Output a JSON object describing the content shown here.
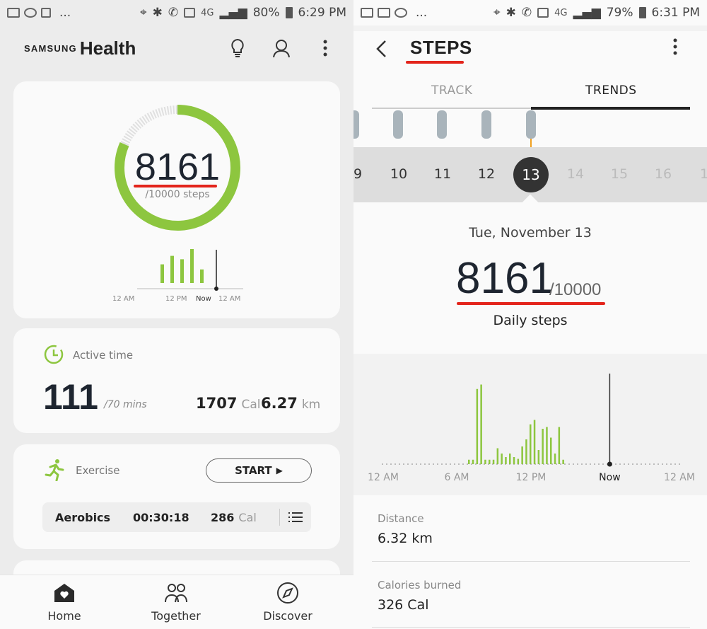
{
  "left_status": {
    "battery": "80%",
    "time": "6:29 PM",
    "network": "4G",
    "more": "..."
  },
  "right_status": {
    "battery": "79%",
    "time": "6:31 PM",
    "network": "4G",
    "more": "..."
  },
  "home": {
    "brand_small": "SAMSUNG",
    "brand_large": "Health",
    "steps": {
      "count": "8161",
      "goal_text": "/10000 steps",
      "progress_fraction": 0.816,
      "mini_chart_bars": [
        0.55,
        0.8,
        0.7,
        1.0,
        0.4
      ],
      "mini_labels": [
        "12 AM",
        "12 PM",
        "Now",
        "12 AM"
      ]
    },
    "active_time": {
      "label": "Active time",
      "value": "111",
      "unit": "/70 mins",
      "calories": "1707",
      "calories_unit": "Cal",
      "distance": "6.27",
      "distance_unit": "km"
    },
    "exercise": {
      "label": "Exercise",
      "start_label": "START",
      "recent": {
        "name": "Aerobics",
        "duration": "00:30:18",
        "calories": "286",
        "calories_unit": "Cal"
      }
    },
    "nav": [
      {
        "label": "Home",
        "icon": "home-heart-icon"
      },
      {
        "label": "Together",
        "icon": "people-icon"
      },
      {
        "label": "Discover",
        "icon": "compass-icon"
      }
    ]
  },
  "steps_detail": {
    "title": "STEPS",
    "tabs": [
      "TRACK",
      "TRENDS"
    ],
    "active_tab": "TRENDS",
    "days": [
      "9",
      "10",
      "11",
      "12",
      "13",
      "14",
      "15",
      "16",
      "1"
    ],
    "selected_day": "13",
    "date_label": "Tue, November 13",
    "steps": "8161",
    "goal": "/10000",
    "steps_label": "Daily steps",
    "distance_label": "Distance",
    "distance_value": "6.32 km",
    "calories_label": "Calories burned",
    "calories_value": "326 Cal"
  },
  "chart_data": {
    "type": "bar",
    "x_labels": [
      "12 AM",
      "6 AM",
      "12 PM",
      "Now",
      "12 AM"
    ],
    "values": [
      0.05,
      0.05,
      0.85,
      0.9,
      0.05,
      0.05,
      0.05,
      0.18,
      0.12,
      0.08,
      0.12,
      0.08,
      0.06,
      0.2,
      0.28,
      0.45,
      0.5,
      0.16,
      0.4,
      0.42,
      0.3,
      0.12,
      0.42,
      0.05
    ],
    "now_fraction": 0.764
  },
  "colors": {
    "accent_green": "#8dc63f",
    "highlight_red": "#e3241b",
    "dark": "#1e2530"
  }
}
